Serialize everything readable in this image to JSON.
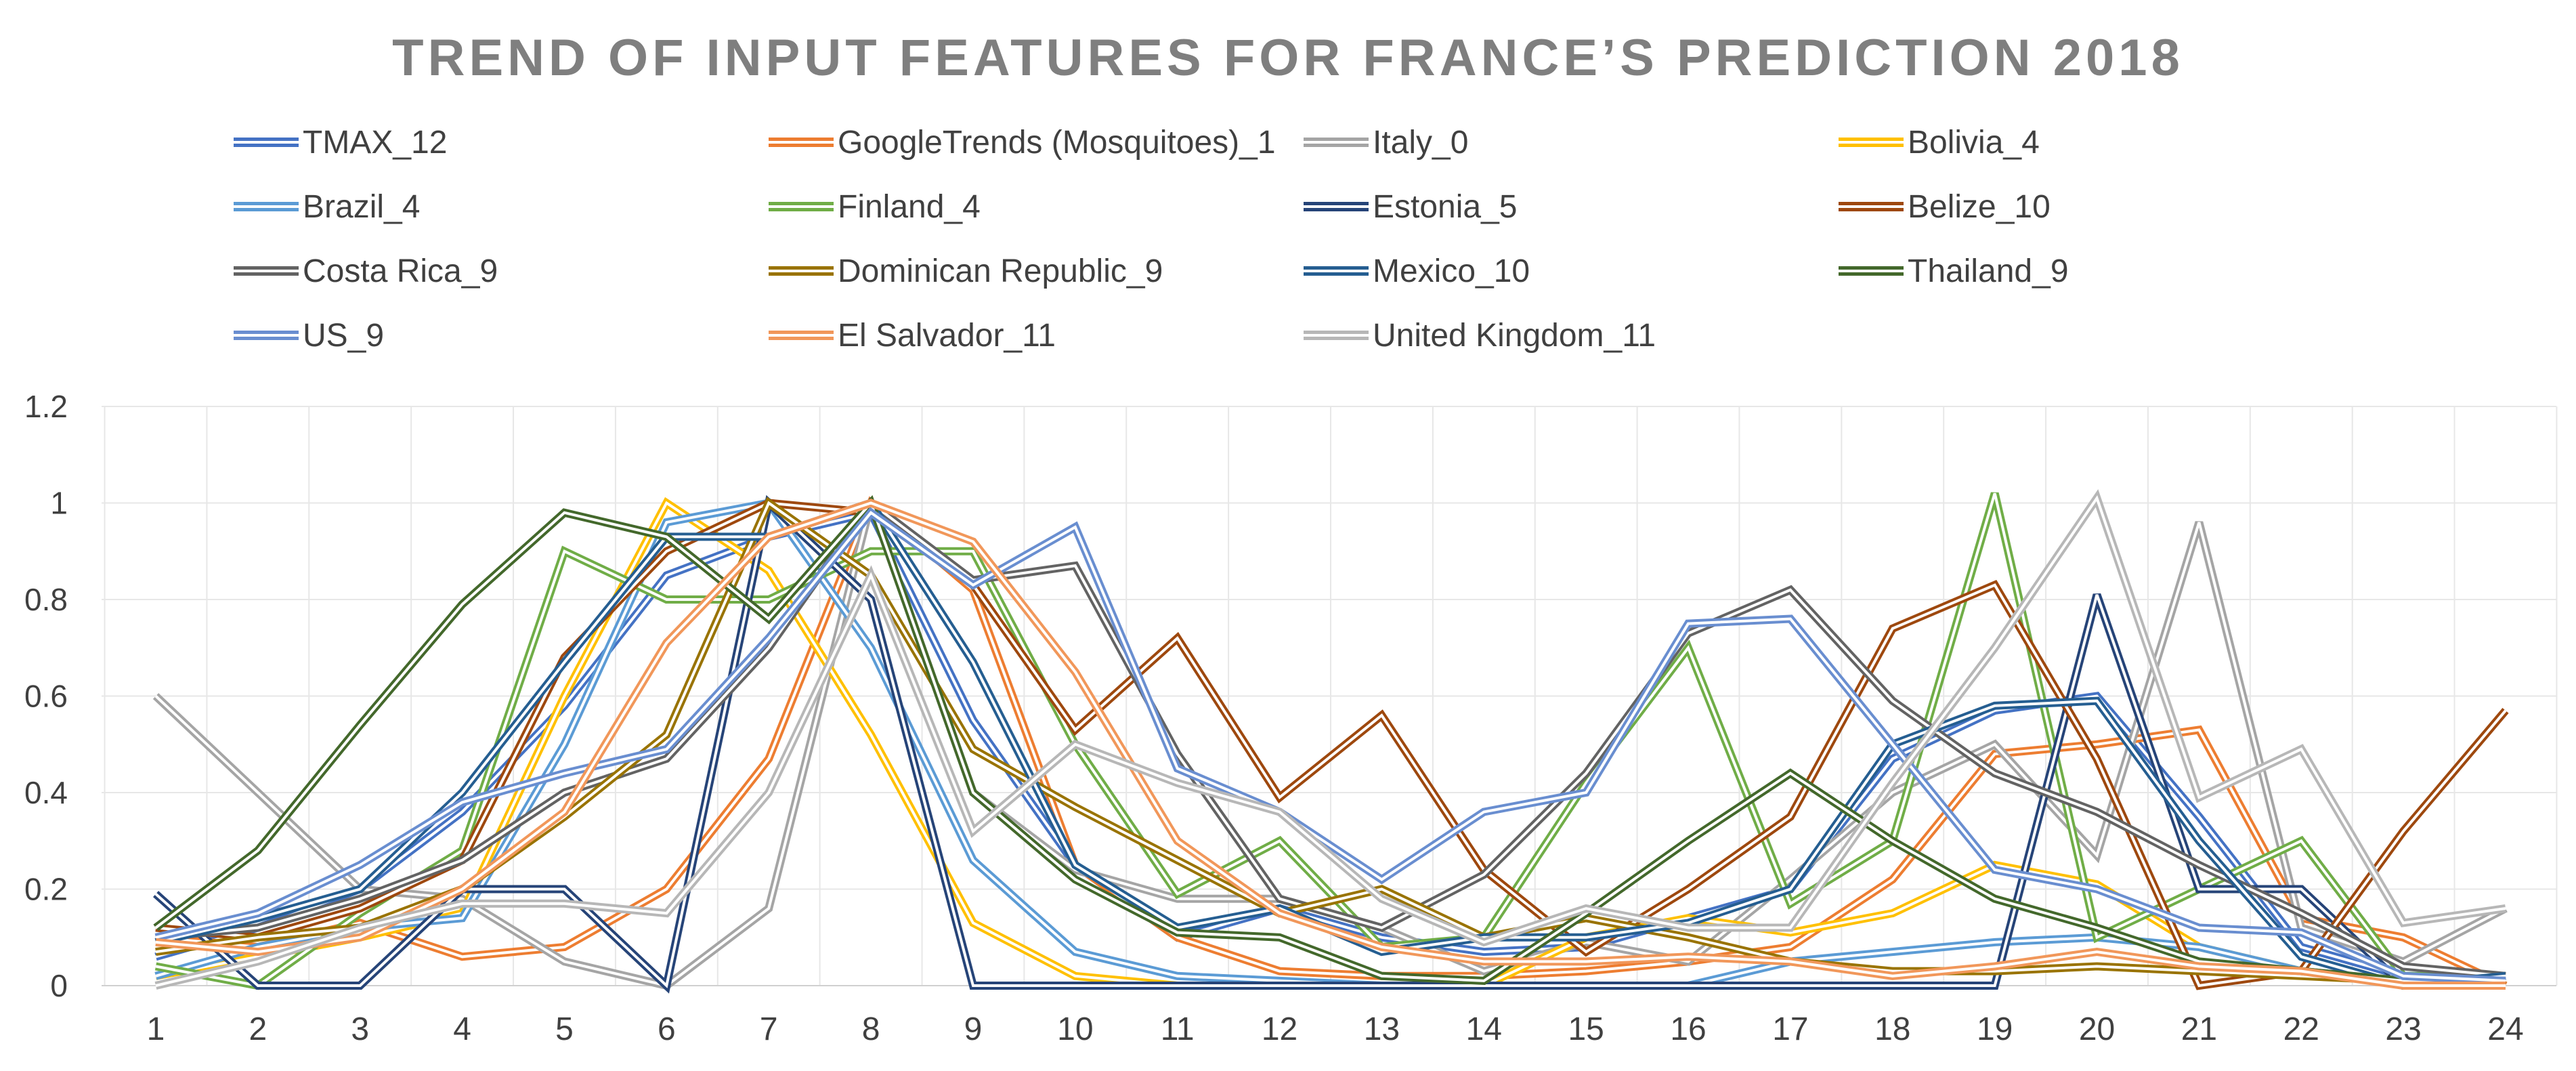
{
  "chart_data": {
    "type": "line",
    "title": "TREND OF INPUT FEATURES FOR FRANCE’S PREDICTION 2018",
    "xlabel": "",
    "ylabel": "",
    "categories": [
      "1",
      "2",
      "3",
      "4",
      "5",
      "6",
      "7",
      "8",
      "9",
      "10",
      "11",
      "12",
      "13",
      "14",
      "15",
      "16",
      "17",
      "18",
      "19",
      "20",
      "21",
      "22",
      "23",
      "24"
    ],
    "ylim": [
      0,
      1.2
    ],
    "yticks": [
      "0",
      "0.2",
      "0.4",
      "0.6",
      "0.8",
      "1",
      "1.2"
    ],
    "grid": true,
    "legend_position": "top",
    "series": [
      {
        "name": "TMAX_12",
        "color": "#4472C4",
        "values": [
          0.06,
          0.12,
          0.2,
          0.36,
          0.58,
          0.85,
          0.93,
          0.98,
          0.55,
          0.25,
          0.1,
          0.16,
          0.1,
          0.07,
          0.08,
          0.14,
          0.2,
          0.47,
          0.57,
          0.6,
          0.35,
          0.08,
          0.02,
          0.02
        ]
      },
      {
        "name": "GoogleTrends (Mosquitoes)_1",
        "color": "#ED7D31",
        "values": [
          0.1,
          0.08,
          0.13,
          0.06,
          0.08,
          0.2,
          0.47,
          1.0,
          0.82,
          0.25,
          0.1,
          0.03,
          0.02,
          0.02,
          0.03,
          0.05,
          0.08,
          0.22,
          0.48,
          0.5,
          0.53,
          0.14,
          0.1,
          0.0
        ]
      },
      {
        "name": "Italy_0",
        "color": "#A5A5A5",
        "values": [
          0.6,
          0.4,
          0.2,
          0.18,
          0.05,
          0.0,
          0.16,
          1.0,
          0.4,
          0.24,
          0.18,
          0.18,
          0.12,
          0.03,
          0.09,
          0.05,
          0.22,
          0.4,
          0.5,
          0.27,
          0.96,
          0.12,
          0.05,
          0.16
        ]
      },
      {
        "name": "Bolivia_4",
        "color": "#FFC000",
        "values": [
          0.02,
          0.06,
          0.1,
          0.15,
          0.6,
          1.0,
          0.86,
          0.52,
          0.13,
          0.02,
          0.0,
          0.0,
          0.0,
          0.0,
          0.1,
          0.14,
          0.11,
          0.15,
          0.25,
          0.21,
          0.08,
          0.03,
          0.01,
          0.0
        ]
      },
      {
        "name": "Brazil_4",
        "color": "#5B9BD5",
        "values": [
          0.02,
          0.08,
          0.12,
          0.14,
          0.5,
          0.96,
          1.0,
          0.7,
          0.26,
          0.07,
          0.02,
          0.01,
          0.0,
          0.0,
          0.0,
          0.0,
          0.05,
          0.07,
          0.09,
          0.1,
          0.08,
          0.03,
          0.01,
          0.0
        ]
      },
      {
        "name": "Finland_4",
        "color": "#70AD47",
        "values": [
          0.04,
          0.0,
          0.15,
          0.28,
          0.9,
          0.8,
          0.8,
          0.9,
          0.9,
          0.5,
          0.19,
          0.3,
          0.08,
          0.1,
          0.42,
          0.7,
          0.17,
          0.3,
          1.02,
          0.1,
          0.2,
          0.3,
          0.02,
          0.02
        ]
      },
      {
        "name": "Estonia_5",
        "color": "#264478",
        "values": [
          0.19,
          0.0,
          0.0,
          0.2,
          0.2,
          0.0,
          1.0,
          0.8,
          0.0,
          0.0,
          0.0,
          0.0,
          0.0,
          0.0,
          0.0,
          0.0,
          0.0,
          0.0,
          0.0,
          0.81,
          0.2,
          0.2,
          0.0,
          0.0
        ]
      },
      {
        "name": "Belize_10",
        "color": "#9E480E",
        "values": [
          0.12,
          0.1,
          0.16,
          0.26,
          0.68,
          0.9,
          1.0,
          0.98,
          0.83,
          0.53,
          0.72,
          0.39,
          0.56,
          0.24,
          0.07,
          0.2,
          0.35,
          0.74,
          0.83,
          0.47,
          0.0,
          0.03,
          0.32,
          0.57
        ]
      },
      {
        "name": "Costa Rica_9",
        "color": "#636363",
        "values": [
          0.1,
          0.12,
          0.18,
          0.26,
          0.4,
          0.47,
          0.7,
          1.0,
          0.84,
          0.87,
          0.48,
          0.18,
          0.12,
          0.23,
          0.44,
          0.73,
          0.82,
          0.59,
          0.44,
          0.36,
          0.25,
          0.15,
          0.04,
          0.02
        ]
      },
      {
        "name": "Dominican Republic_9",
        "color": "#997300",
        "values": [
          0.07,
          0.1,
          0.12,
          0.2,
          0.35,
          0.52,
          1.0,
          0.85,
          0.49,
          0.37,
          0.26,
          0.15,
          0.2,
          0.1,
          0.14,
          0.1,
          0.05,
          0.03,
          0.03,
          0.04,
          0.03,
          0.02,
          0.01,
          0.0
        ]
      },
      {
        "name": "Mexico_10",
        "color": "#255E91",
        "values": [
          0.09,
          0.14,
          0.2,
          0.4,
          0.67,
          0.93,
          0.93,
          1.0,
          0.67,
          0.25,
          0.12,
          0.16,
          0.07,
          0.1,
          0.1,
          0.13,
          0.2,
          0.5,
          0.58,
          0.59,
          0.3,
          0.06,
          0.0,
          0.02
        ]
      },
      {
        "name": "Thailand_9",
        "color": "#43682B",
        "values": [
          0.12,
          0.28,
          0.54,
          0.79,
          0.98,
          0.93,
          0.76,
          1.0,
          0.4,
          0.22,
          0.11,
          0.1,
          0.02,
          0.01,
          0.15,
          0.3,
          0.44,
          0.3,
          0.18,
          0.12,
          0.05,
          0.03,
          0.01,
          0.01
        ]
      },
      {
        "name": "US_9",
        "color": "#698ED0",
        "values": [
          0.1,
          0.15,
          0.25,
          0.38,
          0.44,
          0.49,
          0.72,
          0.98,
          0.83,
          0.95,
          0.45,
          0.36,
          0.22,
          0.36,
          0.4,
          0.75,
          0.76,
          0.5,
          0.24,
          0.2,
          0.12,
          0.11,
          0.02,
          0.01
        ]
      },
      {
        "name": "El Salvador_11",
        "color": "#F1975A",
        "values": [
          0.09,
          0.07,
          0.1,
          0.2,
          0.36,
          0.71,
          0.93,
          1.0,
          0.92,
          0.65,
          0.3,
          0.15,
          0.08,
          0.05,
          0.05,
          0.06,
          0.05,
          0.02,
          0.04,
          0.07,
          0.04,
          0.03,
          0.0,
          0.0
        ]
      },
      {
        "name": "United Kingdom_11",
        "color": "#B7B7B7",
        "values": [
          0.0,
          0.05,
          0.12,
          0.17,
          0.17,
          0.15,
          0.4,
          0.85,
          0.32,
          0.5,
          0.42,
          0.36,
          0.18,
          0.09,
          0.16,
          0.12,
          0.12,
          0.42,
          0.7,
          1.01,
          0.39,
          0.49,
          0.13,
          0.16
        ]
      }
    ]
  }
}
